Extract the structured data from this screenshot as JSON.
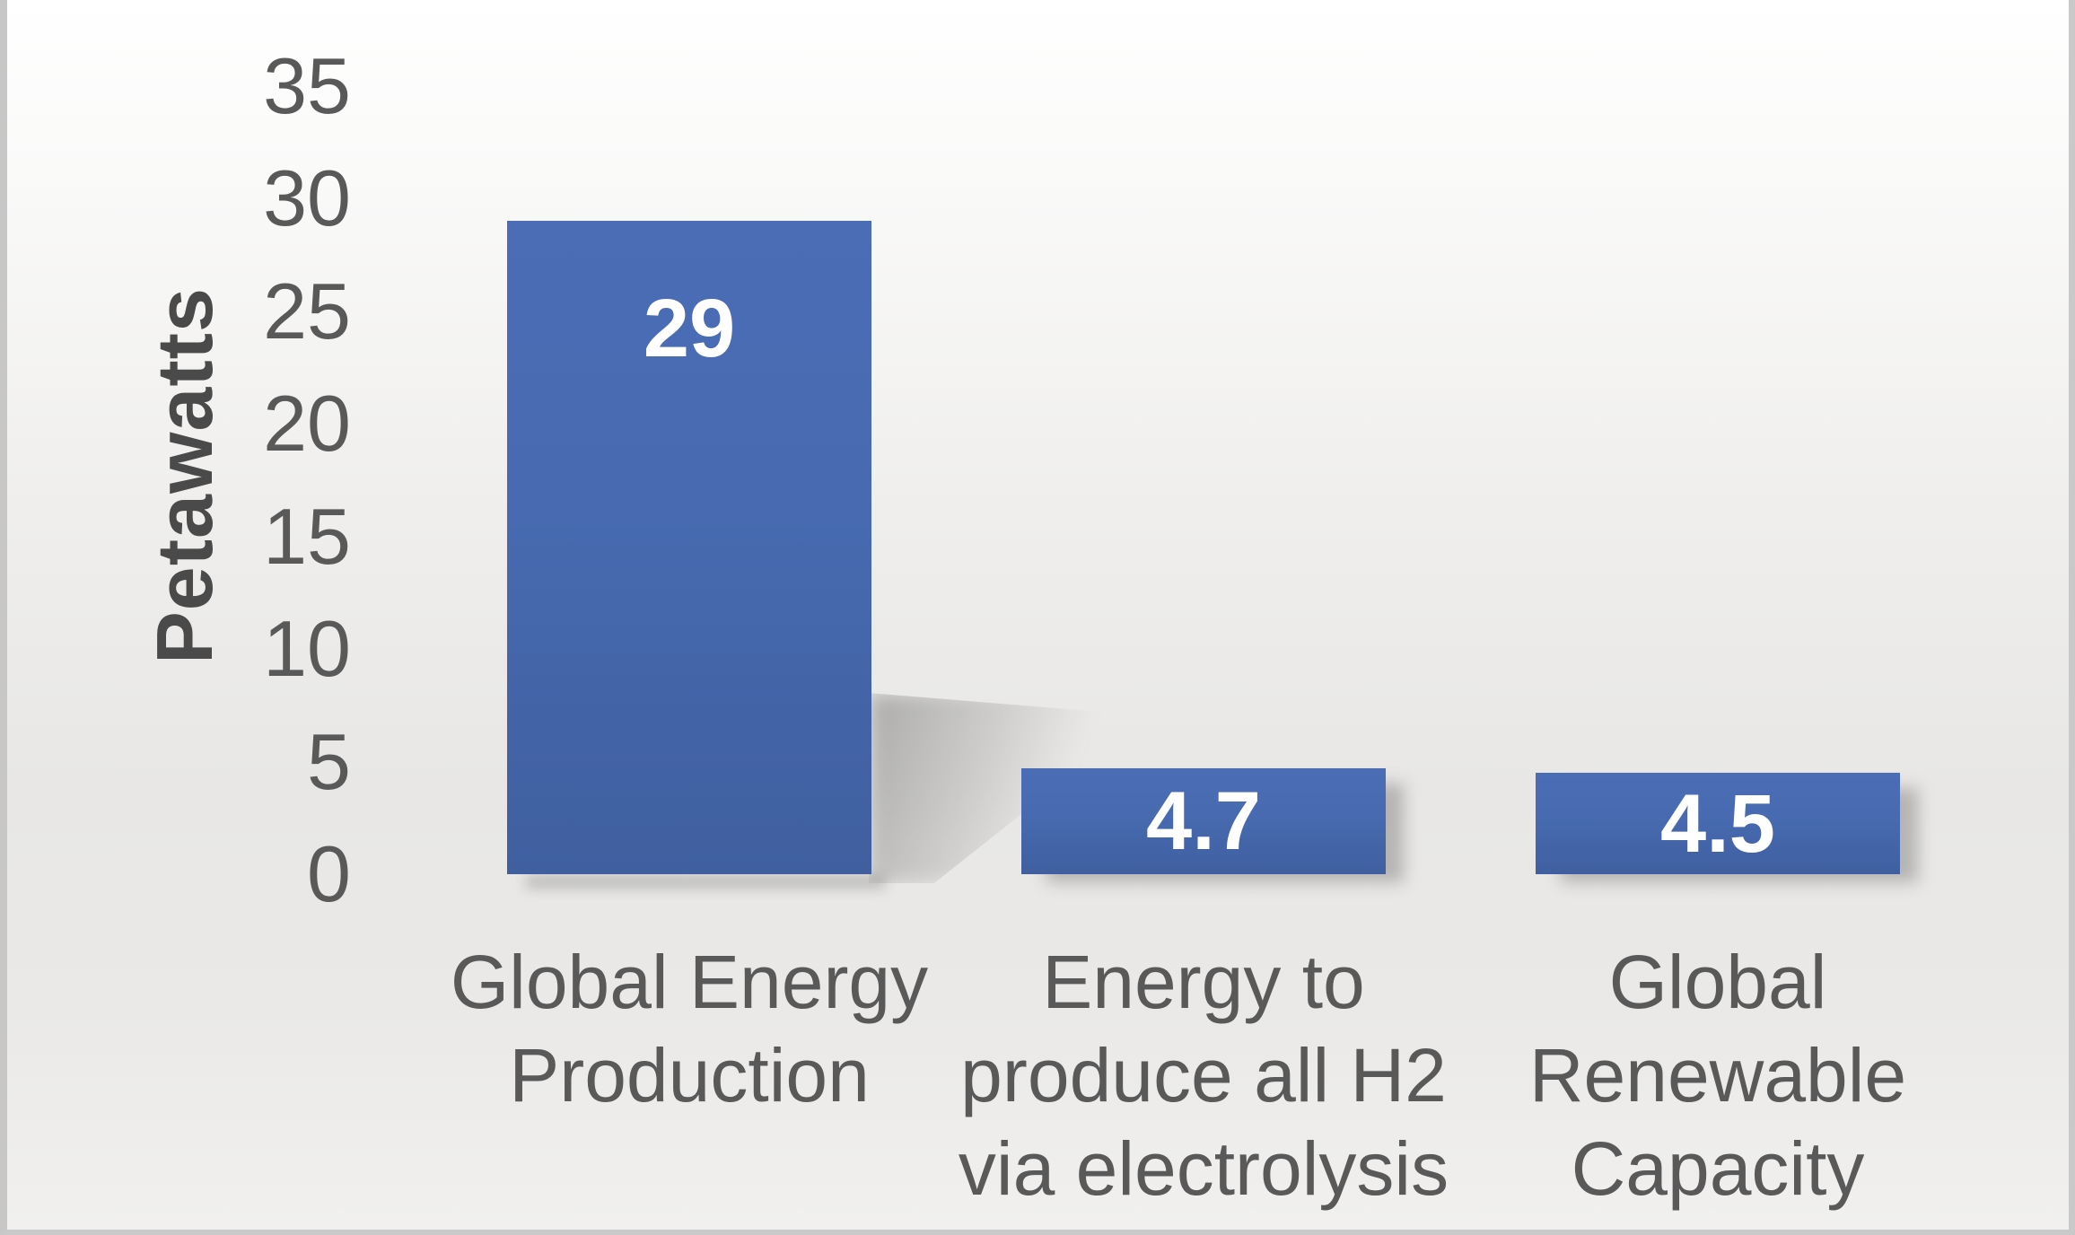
{
  "chart_data": {
    "type": "bar",
    "title": "",
    "xlabel": "",
    "ylabel": "Petawatts",
    "categories": [
      "Global Energy\nProduction",
      "Energy to\nproduce all H2\nvia electrolysis",
      "Global\nRenewable\nCapacity"
    ],
    "values": [
      29,
      4.7,
      4.5
    ],
    "value_labels": [
      "29",
      "4.7",
      "4.5"
    ],
    "ylim": [
      0,
      35
    ],
    "yticks": [
      35,
      30,
      25,
      20,
      15,
      10,
      5,
      0
    ],
    "grid": false,
    "legend": false,
    "bar_color_top": "#4b6db6",
    "bar_color_bottom": "#3f5f9f",
    "value_label_color": "#ffffff",
    "axis_text_color": "#595959",
    "axis_title_color": "#4a4a4a",
    "background_top": "#ffffff",
    "background_bottom": "#e8e7e5",
    "frame_border_color": "#c7c7c7"
  }
}
